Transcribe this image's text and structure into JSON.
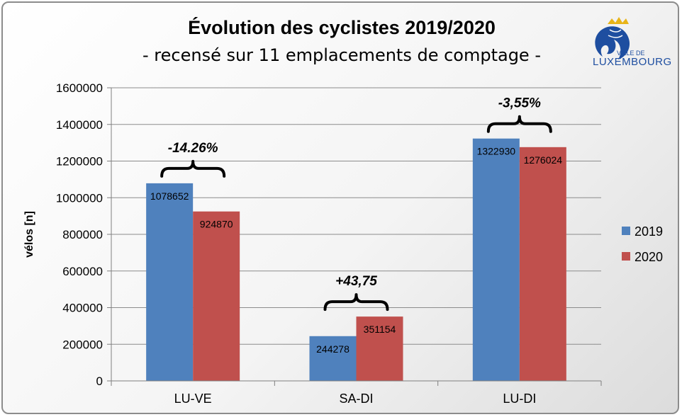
{
  "colors": {
    "s2019": "#4f81bd",
    "s2020": "#c0504d",
    "grid": "#8c8c8c",
    "logo": "#1e4ea0"
  },
  "logo": {
    "line1": "VILLE DE",
    "line2": "LUXEMBOURG",
    "icon": "lion-crown-icon"
  },
  "chart_data": {
    "type": "bar",
    "title": "Évolution des cyclistes 2019/2020",
    "subtitle": "- recensé sur 11 emplacements de comptage -",
    "ylabel": "vélos [n]",
    "xlabel": "",
    "ylim": [
      0,
      1600000
    ],
    "yticks": [
      0,
      200000,
      400000,
      600000,
      800000,
      1000000,
      1200000,
      1400000,
      1600000
    ],
    "grid": true,
    "legend_position": "right",
    "categories": [
      "LU-VE",
      "SA-DI",
      "LU-DI"
    ],
    "series": [
      {
        "name": "2019",
        "values": [
          1078652,
          244278,
          1322930
        ]
      },
      {
        "name": "2020",
        "values": [
          924870,
          351154,
          1276024
        ]
      }
    ],
    "annotations": [
      "-14.26%",
      "+43,75",
      "-3,55%"
    ]
  }
}
